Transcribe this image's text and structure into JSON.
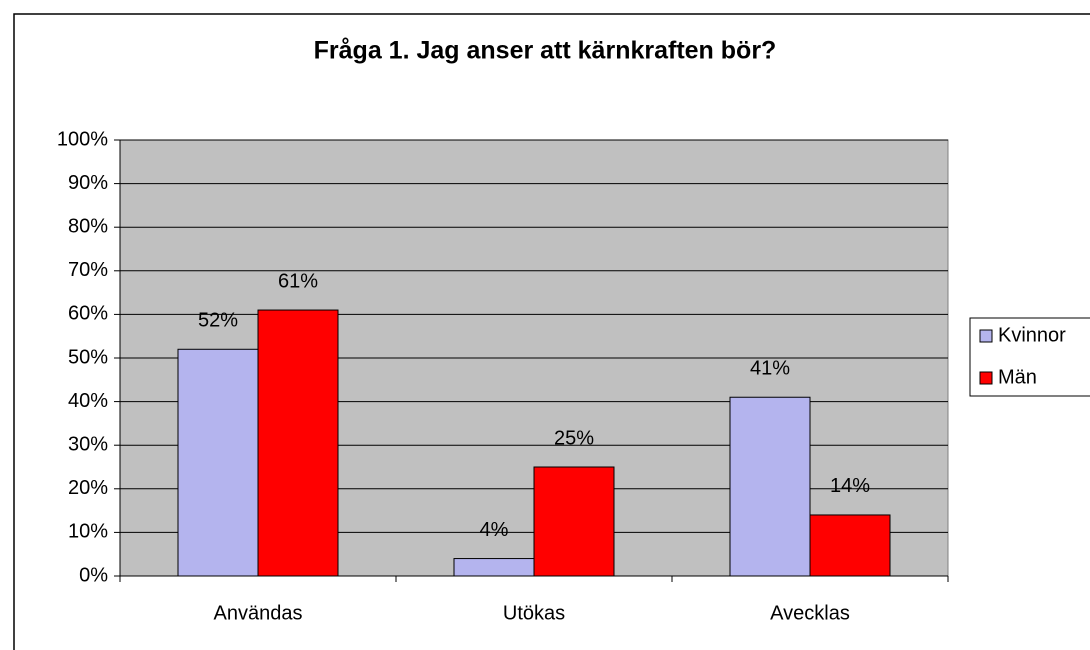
{
  "chart_data": {
    "type": "bar",
    "title": "Fråga 1. Jag anser att kärnkraften bör?",
    "categories": [
      "Användas",
      "Utökas",
      "Avecklas"
    ],
    "series": [
      {
        "name": "Kvinnor",
        "color": "#b4b4ee",
        "values": [
          52,
          4,
          41
        ],
        "value_labels": [
          "52%",
          "4%",
          "41%"
        ]
      },
      {
        "name": "Män",
        "color": "#ff0000",
        "values": [
          61,
          25,
          14
        ],
        "value_labels": [
          "61%",
          "25%",
          "14%"
        ]
      }
    ],
    "ylim": [
      0,
      100
    ],
    "yticks": [
      {
        "value": 0,
        "label": "0%"
      },
      {
        "value": 10,
        "label": "10%"
      },
      {
        "value": 20,
        "label": "20%"
      },
      {
        "value": 30,
        "label": "30%"
      },
      {
        "value": 40,
        "label": "40%"
      },
      {
        "value": 50,
        "label": "50%"
      },
      {
        "value": 60,
        "label": "60%"
      },
      {
        "value": 70,
        "label": "70%"
      },
      {
        "value": 80,
        "label": "80%"
      },
      {
        "value": 90,
        "label": "90%"
      },
      {
        "value": 100,
        "label": "100%"
      }
    ],
    "grid": true,
    "legend": "right",
    "plot_background": "#c0c0c0"
  }
}
